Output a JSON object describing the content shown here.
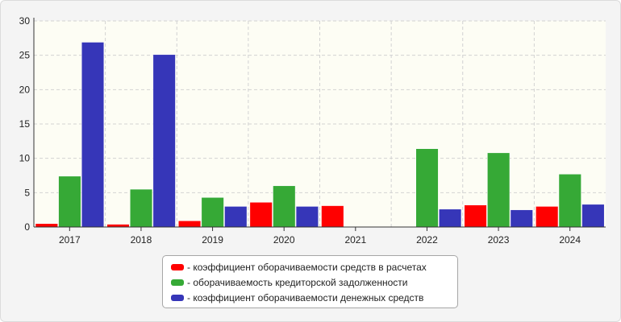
{
  "chart_data": {
    "type": "bar",
    "categories": [
      "2017",
      "2018",
      "2019",
      "2020",
      "2021",
      "2022",
      "2023",
      "2024"
    ],
    "series": [
      {
        "name": "коэффициент оборачиваемости средств в расчетах",
        "color": "#ff0000",
        "values": [
          0.5,
          0.4,
          0.9,
          3.6,
          3.1,
          0,
          3.2,
          3.0
        ]
      },
      {
        "name": "оборачиваемость кредиторской задолженности",
        "color": "#36a936",
        "values": [
          7.4,
          5.5,
          4.3,
          6.0,
          0,
          11.4,
          10.8,
          7.7
        ]
      },
      {
        "name": "коэффициент оборачиваемости денежных средств",
        "color": "#3636b8",
        "values": [
          26.9,
          25.1,
          3.0,
          3.0,
          0,
          2.6,
          2.5,
          3.3
        ]
      }
    ],
    "ylim": [
      0,
      30
    ],
    "yticks": [
      "0",
      "5",
      "10",
      "15",
      "20",
      "25",
      "30"
    ],
    "grid": true,
    "legend_position": "bottom",
    "legend_prefix": "- "
  }
}
